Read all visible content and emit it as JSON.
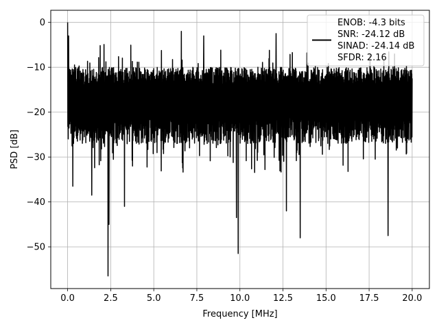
{
  "chart_data": {
    "type": "line",
    "title": "",
    "xlabel": "Frequency [MHz]",
    "ylabel": "PSD [dB]",
    "xlim": [
      -0.98,
      21.0
    ],
    "ylim": [
      -59.3,
      2.7
    ],
    "xticks": [
      0.0,
      2.5,
      5.0,
      7.5,
      10.0,
      12.5,
      15.0,
      17.5,
      20.0
    ],
    "xtick_labels": [
      "0.0",
      "2.5",
      "5.0",
      "7.5",
      "10.0",
      "12.5",
      "15.0",
      "17.5",
      "20.0"
    ],
    "yticks": [
      0,
      -10,
      -20,
      -30,
      -40,
      -50
    ],
    "ytick_labels": [
      "0",
      "−10",
      "−20",
      "−30",
      "−40",
      "−50"
    ],
    "grid": true,
    "legend_position": "top-right",
    "series": [
      {
        "legend_lines": [
          "ENOB: -4.3 bits",
          "SNR: -24.12 dB",
          "SINAD: -24.14 dB",
          "SFDR: 2.16"
        ],
        "color": "#000000",
        "x_range": [
          0.0,
          20.0
        ],
        "approx_envelope_top_db": -10,
        "approx_envelope_bottom_db": -27,
        "peaks": [
          {
            "x": 0.0,
            "y": 0.0
          },
          {
            "x": 0.05,
            "y": -3.0
          },
          {
            "x": 6.6,
            "y": -2.0
          },
          {
            "x": 12.1,
            "y": -2.5
          },
          {
            "x": 7.9,
            "y": -3.0
          }
        ],
        "dips": [
          {
            "x": 2.35,
            "y": -56.5
          },
          {
            "x": 2.4,
            "y": -45.0
          },
          {
            "x": 9.9,
            "y": -51.5
          },
          {
            "x": 9.8,
            "y": -43.5
          },
          {
            "x": 13.5,
            "y": -48.0
          },
          {
            "x": 18.6,
            "y": -47.5
          },
          {
            "x": 12.7,
            "y": -42.0
          },
          {
            "x": 3.3,
            "y": -41.0
          },
          {
            "x": 1.4,
            "y": -38.5
          },
          {
            "x": 0.3,
            "y": -36.5
          }
        ]
      }
    ]
  }
}
